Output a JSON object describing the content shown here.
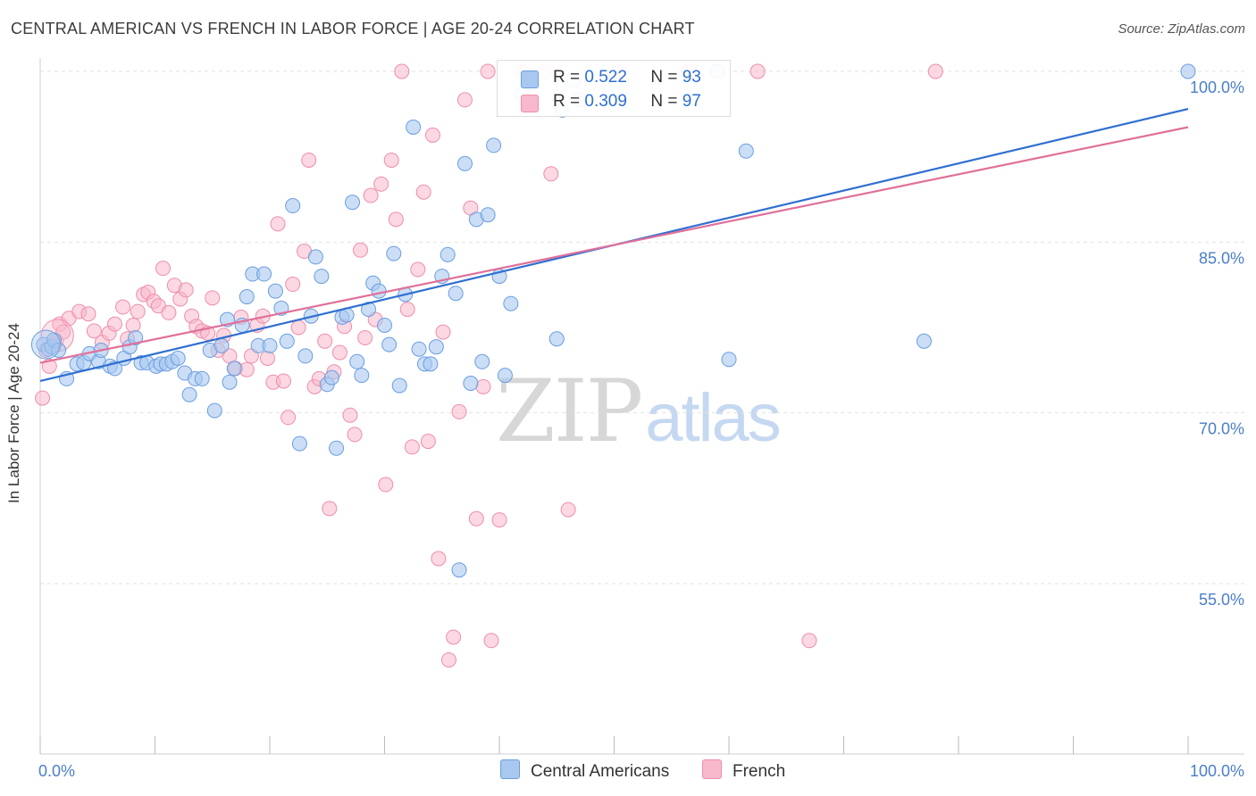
{
  "title": "CENTRAL AMERICAN VS FRENCH IN LABOR FORCE | AGE 20-24 CORRELATION CHART",
  "source": "Source: ZipAtlas.com",
  "watermark": {
    "zip": "ZIP",
    "atlas": "atlas"
  },
  "legend": {
    "r_label": "R =",
    "n_label": "N =",
    "series": [
      {
        "r": "0.522",
        "n": "93"
      },
      {
        "r": "0.309",
        "n": "97"
      }
    ]
  },
  "bottom_legend": [
    "Central Americans",
    "French"
  ],
  "colors": {
    "blue_fill": "#a8c8f0",
    "blue_stroke": "#6a9ee0",
    "blue_line": "#2f6fd1",
    "pink_fill": "#f7b8cb",
    "pink_stroke": "#ee8eab",
    "pink_line": "#e0709a",
    "grid": "#e2e2e2",
    "tick_text": "#4a7ec9"
  },
  "chart_data": {
    "type": "scatter",
    "title": "CENTRAL AMERICAN VS FRENCH IN LABOR FORCE | AGE 20-24 CORRELATION CHART",
    "xlabel": "",
    "ylabel": "In Labor Force | Age 20-24",
    "xlim": [
      0,
      105
    ],
    "ylim": [
      39,
      101
    ],
    "x_tick_labels": [
      "0.0%",
      "100.0%"
    ],
    "y_ticks": [
      55,
      70,
      85,
      100
    ],
    "y_tick_labels": [
      "55.0%",
      "70.0%",
      "85.0%",
      "100.0%"
    ],
    "grid": true,
    "legend_position": "top-center",
    "series": [
      {
        "name": "Central Americans",
        "color": "#a8c8f0",
        "trend": {
          "x": [
            0,
            100
          ],
          "y": [
            72.8,
            96.7
          ]
        },
        "points": [
          [
            0.3,
            76.0
          ],
          [
            0.7,
            75.6
          ],
          [
            1.0,
            75.8
          ],
          [
            1.2,
            76.4
          ],
          [
            1.6,
            75.5
          ],
          [
            2.3,
            73.0
          ],
          [
            3.2,
            74.3
          ],
          [
            3.8,
            74.4
          ],
          [
            4.3,
            75.2
          ],
          [
            5.1,
            74.5
          ],
          [
            5.3,
            75.5
          ],
          [
            6.1,
            74.1
          ],
          [
            6.5,
            73.9
          ],
          [
            7.3,
            74.8
          ],
          [
            7.8,
            75.8
          ],
          [
            8.3,
            76.6
          ],
          [
            8.8,
            74.4
          ],
          [
            9.3,
            74.4
          ],
          [
            10.1,
            74.1
          ],
          [
            10.5,
            74.3
          ],
          [
            11.0,
            74.3
          ],
          [
            11.5,
            74.5
          ],
          [
            12.0,
            74.8
          ],
          [
            12.6,
            73.5
          ],
          [
            13.0,
            71.6
          ],
          [
            13.5,
            73.0
          ],
          [
            14.1,
            73.0
          ],
          [
            14.8,
            75.5
          ],
          [
            15.2,
            70.2
          ],
          [
            15.8,
            75.9
          ],
          [
            16.3,
            78.2
          ],
          [
            16.5,
            72.7
          ],
          [
            16.9,
            73.9
          ],
          [
            17.6,
            77.7
          ],
          [
            18.0,
            80.2
          ],
          [
            18.5,
            82.2
          ],
          [
            19.0,
            75.9
          ],
          [
            19.5,
            82.2
          ],
          [
            20.0,
            75.9
          ],
          [
            20.5,
            80.7
          ],
          [
            21.0,
            79.2
          ],
          [
            21.5,
            76.3
          ],
          [
            22.0,
            88.2
          ],
          [
            22.6,
            67.3
          ],
          [
            23.1,
            75.0
          ],
          [
            23.6,
            78.5
          ],
          [
            24.0,
            83.7
          ],
          [
            24.5,
            82.0
          ],
          [
            25.0,
            72.5
          ],
          [
            25.4,
            73.1
          ],
          [
            25.8,
            66.9
          ],
          [
            26.3,
            78.4
          ],
          [
            26.7,
            78.6
          ],
          [
            27.2,
            88.5
          ],
          [
            27.6,
            74.5
          ],
          [
            28.0,
            73.3
          ],
          [
            28.6,
            79.1
          ],
          [
            29.0,
            81.4
          ],
          [
            29.5,
            80.7
          ],
          [
            30.0,
            77.7
          ],
          [
            30.4,
            76.0
          ],
          [
            30.8,
            84.0
          ],
          [
            31.3,
            72.4
          ],
          [
            31.8,
            80.4
          ],
          [
            32.5,
            95.1
          ],
          [
            33.0,
            75.6
          ],
          [
            33.5,
            74.3
          ],
          [
            34.0,
            74.3
          ],
          [
            34.5,
            75.8
          ],
          [
            35.0,
            82.0
          ],
          [
            35.5,
            83.9
          ],
          [
            36.2,
            80.5
          ],
          [
            37.0,
            91.9
          ],
          [
            37.5,
            72.6
          ],
          [
            38.0,
            87.0
          ],
          [
            38.5,
            74.5
          ],
          [
            39.0,
            87.4
          ],
          [
            39.5,
            93.5
          ],
          [
            40.0,
            82.0
          ],
          [
            40.5,
            73.3
          ],
          [
            41.0,
            79.6
          ],
          [
            42.0,
            98.0
          ],
          [
            45.0,
            76.5
          ],
          [
            46.5,
            99.2
          ],
          [
            59.0,
            100.0
          ],
          [
            60.0,
            74.7
          ],
          [
            61.5,
            93.0
          ],
          [
            77.0,
            76.3
          ],
          [
            100.0,
            100.0
          ],
          [
            36.5,
            56.2
          ],
          [
            47.0,
            97.5
          ],
          [
            45.5,
            96.6
          ]
        ]
      },
      {
        "name": "French",
        "color": "#f7b8cb",
        "trend": {
          "x": [
            0,
            100
          ],
          "y": [
            74.4,
            95.1
          ]
        },
        "points": [
          [
            0.2,
            71.3
          ],
          [
            0.8,
            74.1
          ],
          [
            1.2,
            76.0
          ],
          [
            1.7,
            77.8
          ],
          [
            2.5,
            78.3
          ],
          [
            3.4,
            78.9
          ],
          [
            4.2,
            78.7
          ],
          [
            4.7,
            77.2
          ],
          [
            5.4,
            76.2
          ],
          [
            6.0,
            77.0
          ],
          [
            6.5,
            77.8
          ],
          [
            7.2,
            79.3
          ],
          [
            7.6,
            76.5
          ],
          [
            8.1,
            77.7
          ],
          [
            8.5,
            78.9
          ],
          [
            9.0,
            80.4
          ],
          [
            9.4,
            80.6
          ],
          [
            9.9,
            79.8
          ],
          [
            10.3,
            79.4
          ],
          [
            10.7,
            82.7
          ],
          [
            11.2,
            78.8
          ],
          [
            11.7,
            81.2
          ],
          [
            12.2,
            80.0
          ],
          [
            12.7,
            80.8
          ],
          [
            13.2,
            78.5
          ],
          [
            13.6,
            77.6
          ],
          [
            14.1,
            77.2
          ],
          [
            14.6,
            77.0
          ],
          [
            15.0,
            80.1
          ],
          [
            15.5,
            75.5
          ],
          [
            16.0,
            76.8
          ],
          [
            16.5,
            75.0
          ],
          [
            17.0,
            73.9
          ],
          [
            17.5,
            78.4
          ],
          [
            18.0,
            73.8
          ],
          [
            18.4,
            75.0
          ],
          [
            18.9,
            77.7
          ],
          [
            19.4,
            78.5
          ],
          [
            19.8,
            74.8
          ],
          [
            20.3,
            72.7
          ],
          [
            20.7,
            86.6
          ],
          [
            21.2,
            72.8
          ],
          [
            21.6,
            69.6
          ],
          [
            22.0,
            81.3
          ],
          [
            22.5,
            77.5
          ],
          [
            23.0,
            84.2
          ],
          [
            23.4,
            92.2
          ],
          [
            23.9,
            72.3
          ],
          [
            24.3,
            73.0
          ],
          [
            24.8,
            76.3
          ],
          [
            25.2,
            61.6
          ],
          [
            25.6,
            73.6
          ],
          [
            26.1,
            75.3
          ],
          [
            26.5,
            77.6
          ],
          [
            27.0,
            69.8
          ],
          [
            27.4,
            68.1
          ],
          [
            27.9,
            84.3
          ],
          [
            28.3,
            76.6
          ],
          [
            28.8,
            89.1
          ],
          [
            29.2,
            78.2
          ],
          [
            29.7,
            90.1
          ],
          [
            30.1,
            63.7
          ],
          [
            30.6,
            92.2
          ],
          [
            31.0,
            87.0
          ],
          [
            31.5,
            100.0
          ],
          [
            32.0,
            79.1
          ],
          [
            32.4,
            67.0
          ],
          [
            32.9,
            82.6
          ],
          [
            33.4,
            89.4
          ],
          [
            33.8,
            67.5
          ],
          [
            34.2,
            94.4
          ],
          [
            34.7,
            57.2
          ],
          [
            35.1,
            77.1
          ],
          [
            35.6,
            48.3
          ],
          [
            36.0,
            50.3
          ],
          [
            36.5,
            70.1
          ],
          [
            37.0,
            97.5
          ],
          [
            37.5,
            88.0
          ],
          [
            38.0,
            60.7
          ],
          [
            38.6,
            72.3
          ],
          [
            39.3,
            50.0
          ],
          [
            40.0,
            60.6
          ],
          [
            42.0,
            100.0
          ],
          [
            44.5,
            91.0
          ],
          [
            46.0,
            61.5
          ],
          [
            50.5,
            100.0
          ],
          [
            56.5,
            100.0
          ],
          [
            62.5,
            100.0
          ],
          [
            67.0,
            50.0
          ],
          [
            78.0,
            100.0
          ],
          [
            0.5,
            75.5
          ],
          [
            1.4,
            76.3
          ],
          [
            2.0,
            77.1
          ],
          [
            44.0,
            100.0
          ],
          [
            39.0,
            100.0
          ]
        ]
      }
    ]
  }
}
